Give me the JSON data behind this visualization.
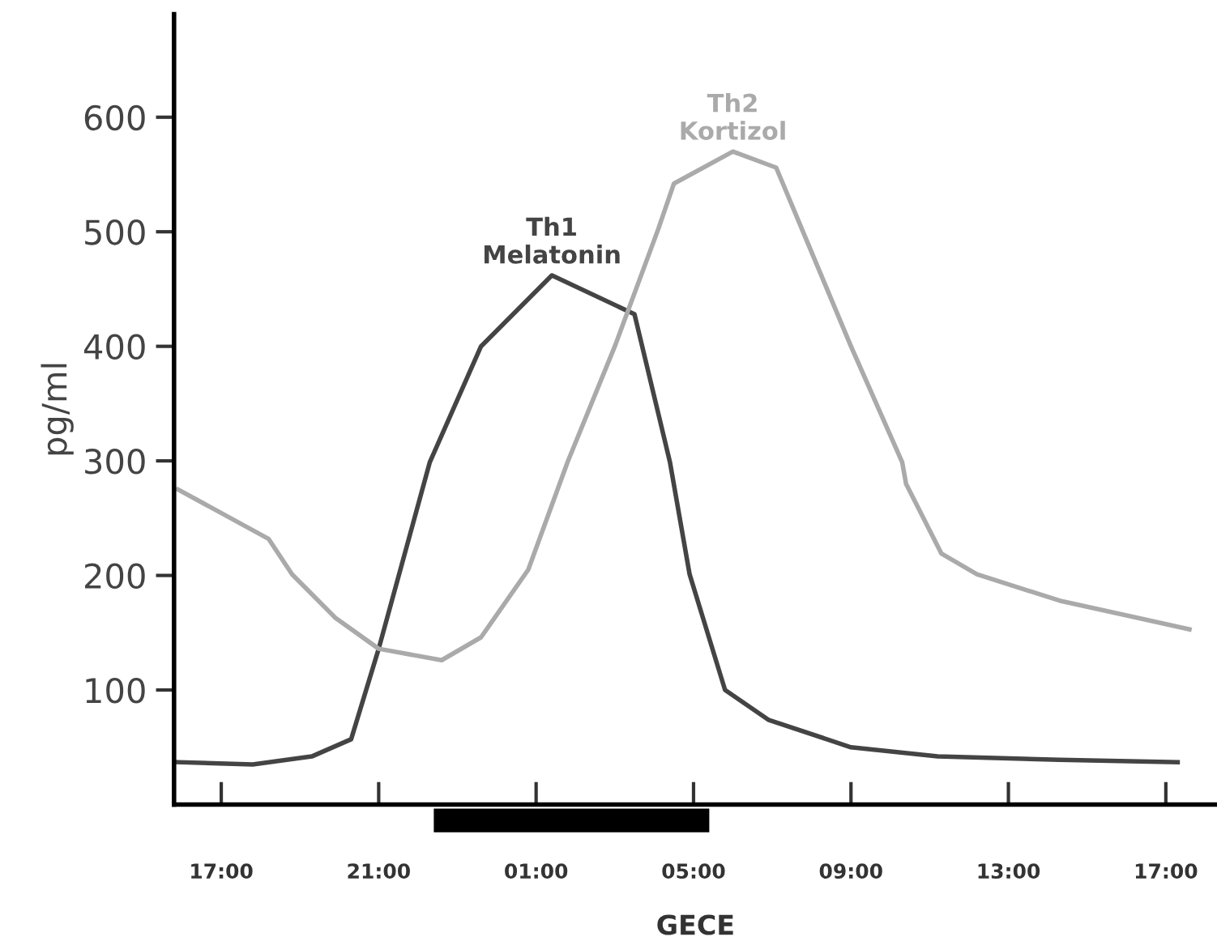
{
  "chart_data": {
    "type": "line",
    "xlabel": "GECE",
    "ylabel": "pg/ml",
    "xlim": [
      "2000-01-01T15:48",
      "2000-01-02T18:18"
    ],
    "ylim": [
      0,
      690
    ],
    "xticks": [
      {
        "value": "2000-01-01T17:00",
        "label": "17:00"
      },
      {
        "value": "2000-01-01T21:00",
        "label": "21:00"
      },
      {
        "value": "2000-01-02T01:00",
        "label": "01:00"
      },
      {
        "value": "2000-01-02T05:00",
        "label": "05:00"
      },
      {
        "value": "2000-01-02T09:00",
        "label": "09:00"
      },
      {
        "value": "2000-01-02T13:00",
        "label": "13:00"
      },
      {
        "value": "2000-01-02T17:00",
        "label": "17:00"
      }
    ],
    "yticks": [
      100,
      200,
      300,
      400,
      500,
      600
    ],
    "grid": false,
    "legend": false,
    "marker": "none",
    "line_style": "solid",
    "series": [
      {
        "name": "Th1\nMelatonin",
        "color": "#444444",
        "x": [
          "2000-01-01T15:54",
          "2000-01-01T17:48",
          "2000-01-01T19:18",
          "2000-01-01T20:18",
          "2000-01-01T21:00",
          "2000-01-01T22:18",
          "2000-01-01T23:36",
          "2000-01-02T01:24",
          "2000-01-02T03:30",
          "2000-01-02T04:24",
          "2000-01-02T04:54",
          "2000-01-02T05:48",
          "2000-01-02T06:54",
          "2000-01-02T09:00",
          "2000-01-02T11:12",
          "2000-01-02T14:18",
          "2000-01-02T17:18"
        ],
        "values": [
          37,
          35,
          42,
          57,
          136,
          299,
          400,
          462,
          428,
          299,
          201,
          100,
          74,
          50,
          42,
          39,
          37
        ]
      },
      {
        "name": "Th2\nKortizol",
        "color": "#aaaaaa",
        "x": [
          "2000-01-01T15:54",
          "2000-01-01T18:12",
          "2000-01-01T18:48",
          "2000-01-01T19:54",
          "2000-01-01T21:00",
          "2000-01-01T22:36",
          "2000-01-01T23:36",
          "2000-01-02T00:48",
          "2000-01-02T01:48",
          "2000-01-02T03:00",
          "2000-01-02T04:06",
          "2000-01-02T04:30",
          "2000-01-02T06:00",
          "2000-01-02T07:06",
          "2000-01-02T09:00",
          "2000-01-02T10:18",
          "2000-01-02T10:24",
          "2000-01-02T11:18",
          "2000-01-02T12:12",
          "2000-01-02T14:18",
          "2000-01-02T17:36"
        ],
        "values": [
          275,
          232,
          201,
          163,
          136,
          126,
          146,
          205,
          299,
          400,
          502,
          542,
          570,
          556,
          400,
          299,
          280,
          219,
          201,
          178,
          153
        ]
      }
    ]
  }
}
